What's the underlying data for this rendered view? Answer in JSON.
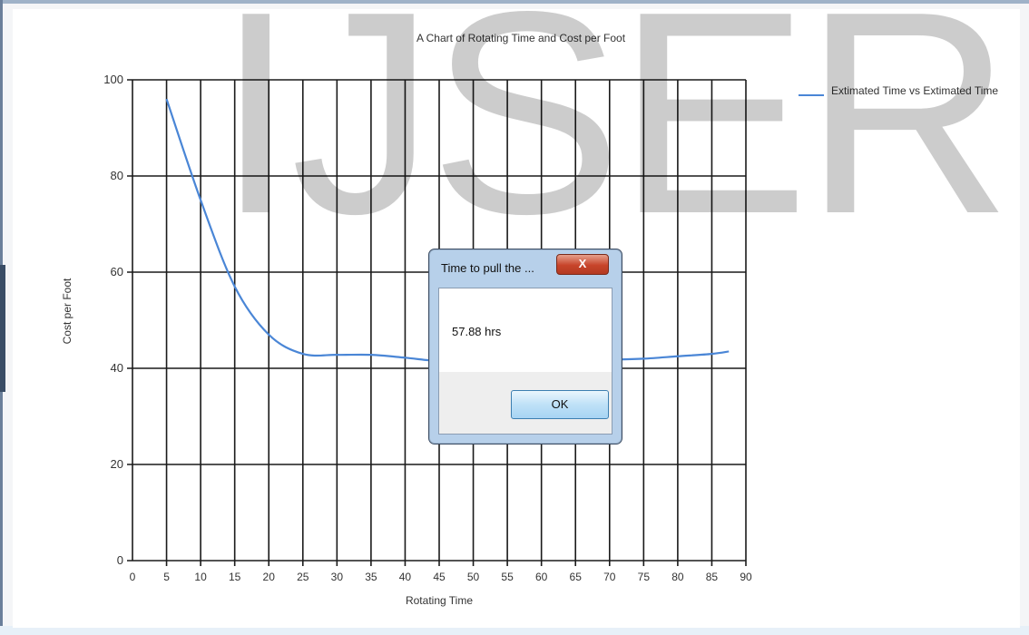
{
  "window": {
    "watermark_text": "IJSER"
  },
  "chart_data": {
    "type": "line",
    "title": "A Chart of Rotating Time and Cost per Foot",
    "xlabel": "Rotating Time",
    "ylabel": "Cost per Foot",
    "xlim": [
      0,
      90
    ],
    "ylim": [
      0,
      100
    ],
    "x_ticks": [
      "0",
      "5",
      "10",
      "15",
      "20",
      "25",
      "30",
      "35",
      "40",
      "45",
      "50",
      "55",
      "60",
      "65",
      "70",
      "75",
      "80",
      "85",
      "90"
    ],
    "y_ticks": [
      "0",
      "20",
      "40",
      "60",
      "80",
      "100"
    ],
    "grid": true,
    "legend_position": "top-right",
    "series": [
      {
        "name": "Extimated Time vs Extimated Time",
        "color": "#4a86d6",
        "x": [
          5,
          10,
          15,
          20,
          25,
          30,
          35,
          40,
          45,
          50,
          55,
          60,
          65,
          70,
          75,
          80,
          85,
          87.5
        ],
        "y": [
          96,
          75,
          57,
          47,
          43,
          42.8,
          42.8,
          42.2,
          41.5,
          41.5,
          41.5,
          41.6,
          41.7,
          41.8,
          42,
          42.5,
          43,
          43.5
        ]
      }
    ]
  },
  "dialog": {
    "title": "Time to pull the ...",
    "close_label": "X",
    "message": "57.88 hrs",
    "ok_label": "OK"
  }
}
